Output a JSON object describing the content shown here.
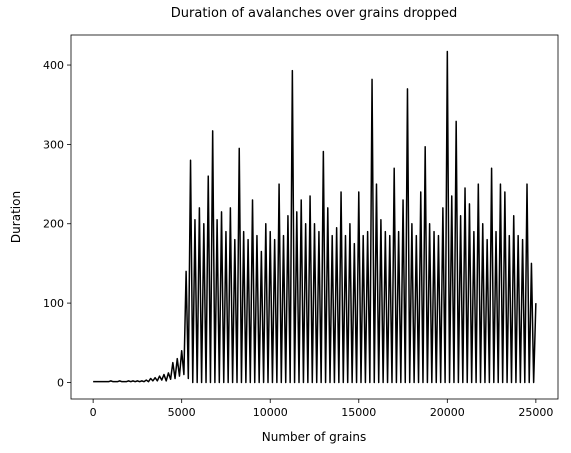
{
  "chart_data": {
    "type": "line",
    "title": "Duration of avalanches over grains dropped",
    "xlabel": "Number of grains",
    "ylabel": "Duration",
    "color": "#000000",
    "xlim": [
      -1250,
      26250
    ],
    "ylim": [
      -20.85,
      437.85
    ],
    "xticks": [
      0,
      5000,
      10000,
      15000,
      20000,
      25000
    ],
    "yticks": [
      0,
      100,
      200,
      300,
      400
    ],
    "x": [
      0,
      125,
      250,
      375,
      500,
      625,
      750,
      875,
      1000,
      1125,
      1250,
      1375,
      1500,
      1625,
      1750,
      1875,
      2000,
      2125,
      2250,
      2375,
      2500,
      2625,
      2750,
      2875,
      3000,
      3125,
      3250,
      3375,
      3500,
      3625,
      3750,
      3875,
      4000,
      4125,
      4250,
      4375,
      4500,
      4625,
      4750,
      4875,
      5000,
      5125,
      5250,
      5375,
      5500,
      5625,
      5750,
      5875,
      6000,
      6125,
      6250,
      6375,
      6500,
      6625,
      6750,
      6875,
      7000,
      7125,
      7250,
      7375,
      7500,
      7625,
      7750,
      7875,
      8000,
      8125,
      8250,
      8375,
      8500,
      8625,
      8750,
      8875,
      9000,
      9125,
      9250,
      9375,
      9500,
      9625,
      9750,
      9875,
      10000,
      10125,
      10250,
      10375,
      10500,
      10625,
      10750,
      10875,
      11000,
      11125,
      11250,
      11375,
      11500,
      11625,
      11750,
      11875,
      12000,
      12125,
      12250,
      12375,
      12500,
      12625,
      12750,
      12875,
      13000,
      13125,
      13250,
      13375,
      13500,
      13625,
      13750,
      13875,
      14000,
      14125,
      14250,
      14375,
      14500,
      14625,
      14750,
      14875,
      15000,
      15125,
      15250,
      15375,
      15500,
      15625,
      15750,
      15875,
      16000,
      16125,
      16250,
      16375,
      16500,
      16625,
      16750,
      16875,
      17000,
      17125,
      17250,
      17375,
      17500,
      17625,
      17750,
      17875,
      18000,
      18125,
      18250,
      18375,
      18500,
      18625,
      18750,
      18875,
      19000,
      19125,
      19250,
      19375,
      19500,
      19625,
      19750,
      19875,
      20000,
      20125,
      20250,
      20375,
      20500,
      20625,
      20750,
      20875,
      21000,
      21125,
      21250,
      21375,
      21500,
      21625,
      21750,
      21875,
      22000,
      22125,
      22250,
      22375,
      22500,
      22625,
      22750,
      22875,
      23000,
      23125,
      23250,
      23375,
      23500,
      23625,
      23750,
      23875,
      24000,
      24125,
      24250,
      24375,
      24500,
      24625,
      24750,
      24875,
      25000
    ],
    "values": [
      1,
      1,
      1,
      1,
      1,
      1,
      1,
      1,
      2,
      1,
      1,
      1,
      2,
      1,
      1,
      1,
      2,
      1,
      2,
      1,
      2,
      1,
      2,
      1,
      3,
      1,
      5,
      2,
      6,
      2,
      8,
      3,
      10,
      2,
      12,
      4,
      25,
      5,
      30,
      8,
      40,
      10,
      140,
      5,
      280,
      0,
      205,
      0,
      220,
      0,
      200,
      0,
      260,
      0,
      317,
      0,
      205,
      0,
      215,
      0,
      190,
      0,
      220,
      0,
      180,
      0,
      295,
      0,
      190,
      0,
      180,
      0,
      230,
      0,
      185,
      0,
      165,
      0,
      200,
      0,
      190,
      0,
      180,
      0,
      250,
      0,
      185,
      0,
      210,
      0,
      393,
      0,
      215,
      0,
      230,
      0,
      200,
      0,
      235,
      0,
      200,
      0,
      190,
      0,
      291,
      0,
      220,
      0,
      185,
      0,
      195,
      0,
      240,
      0,
      185,
      0,
      200,
      0,
      175,
      0,
      240,
      0,
      185,
      0,
      190,
      0,
      382,
      0,
      250,
      0,
      205,
      0,
      190,
      0,
      185,
      0,
      270,
      0,
      190,
      0,
      230,
      0,
      370,
      0,
      200,
      0,
      185,
      0,
      240,
      0,
      297,
      0,
      200,
      0,
      190,
      0,
      185,
      0,
      220,
      0,
      417,
      0,
      235,
      0,
      329,
      0,
      210,
      0,
      245,
      0,
      225,
      0,
      190,
      0,
      250,
      0,
      200,
      0,
      180,
      0,
      270,
      0,
      190,
      0,
      250,
      0,
      240,
      0,
      185,
      0,
      210,
      0,
      185,
      0,
      180,
      0,
      250,
      0,
      150,
      0,
      100
    ]
  }
}
